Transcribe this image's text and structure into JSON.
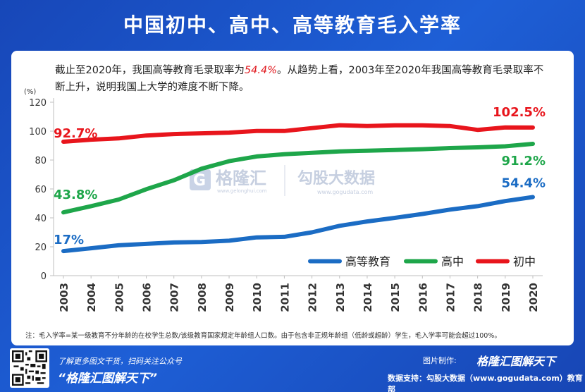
{
  "title": "中国初中、高中、高等教育毛入学率",
  "description": {
    "part1": "截止至2020年，我国高等教育毛录取率为",
    "highlight": "54.4%",
    "part2": "。从趋势上看，2003年至2020年我国高等教育毛录取率不断上升，说明我国上大学的难度不断下降。"
  },
  "watermark": {
    "logo_text": "格隆汇",
    "logo_url": "www.gelonghui.com",
    "source_text": "勾股大数据",
    "source_url": "www.gogudata.com"
  },
  "chart_data": {
    "type": "line",
    "ylabel": "(%)",
    "ylim": [
      0,
      120
    ],
    "yticks": [
      0,
      20,
      40,
      60,
      80,
      100,
      120
    ],
    "categories": [
      "2003",
      "2004",
      "2005",
      "2006",
      "2007",
      "2008",
      "2009",
      "2010",
      "2011",
      "2012",
      "2013",
      "2014",
      "2015",
      "2016",
      "2017",
      "2018",
      "2019",
      "2020"
    ],
    "series": [
      {
        "name": "高等教育",
        "color": "#1b6cc4",
        "values": [
          17,
          19,
          21,
          22,
          23,
          23.3,
          24.2,
          26.5,
          26.9,
          30,
          34.5,
          37.5,
          40,
          42.7,
          45.7,
          48.1,
          51.6,
          54.4
        ],
        "start_label": "17%",
        "end_label": "54.4%"
      },
      {
        "name": "高中",
        "color": "#1ea64a",
        "values": [
          43.8,
          48.1,
          52.7,
          59.8,
          66,
          74,
          79.2,
          82.5,
          84,
          85,
          86,
          86.5,
          87,
          87.5,
          88.3,
          88.8,
          89.5,
          91.2
        ],
        "start_label": "43.8%",
        "end_label": "91.2%"
      },
      {
        "name": "初中",
        "color": "#e8151c",
        "values": [
          92.7,
          94.1,
          95,
          97,
          98,
          98.5,
          99,
          100.1,
          100.1,
          102.1,
          104.1,
          103.5,
          104,
          104,
          103.5,
          100.9,
          102.6,
          102.5
        ],
        "start_label": "92.7%",
        "end_label": "102.5%"
      }
    ],
    "legend_position": "bottom-right"
  },
  "footnote": "注：毛入学率=某一级教育不分年龄的在校学生总数/该级教育国家规定年龄组人口数。由于包含非正规年龄组（低龄或超龄）学生，毛入学率可能会超过100%。",
  "footer": {
    "promo_line1": "了解更多图文干货，扫码关注公众号",
    "promo_line2": "“格隆汇图解天下”",
    "credit_label": "图片制作:",
    "credit_logo": "格隆汇图解天下",
    "data_support": "数据支持：勾股大数据（www.gogudata.com）教育部"
  }
}
